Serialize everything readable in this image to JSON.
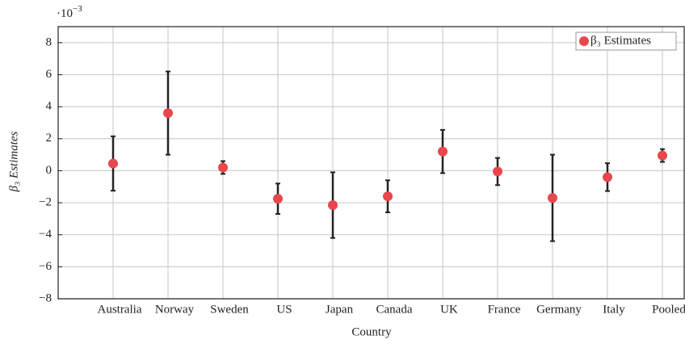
{
  "chart_data": {
    "type": "errorbar",
    "y_multiplier": {
      "base": "·10",
      "exponent": "−3"
    },
    "xlabel": "Country",
    "ylabel": "β₃ Estimates",
    "categories": [
      "Australia",
      "Norway",
      "Sweden",
      "US",
      "Japan",
      "Canada",
      "UK",
      "France",
      "Germany",
      "Italy",
      "Pooled"
    ],
    "series": [
      {
        "name": "β₃ Estimates",
        "color": "#e8474c",
        "error_color": "#222222",
        "values": [
          0.45,
          3.6,
          0.2,
          -1.75,
          -2.15,
          -1.6,
          1.2,
          -0.05,
          -1.7,
          -0.4,
          0.95
        ],
        "errors": [
          1.7,
          2.6,
          0.4,
          0.95,
          2.05,
          1.0,
          1.35,
          0.85,
          2.7,
          0.87,
          0.4
        ]
      }
    ],
    "ylim": [
      -8,
      9
    ],
    "yticks": [
      {
        "value": -8,
        "label": "−8"
      },
      {
        "value": -6,
        "label": "−6"
      },
      {
        "value": -4,
        "label": "−4"
      },
      {
        "value": -2,
        "label": "−2"
      },
      0,
      2,
      4,
      6,
      8
    ],
    "grid": true,
    "legend": "upper right"
  }
}
